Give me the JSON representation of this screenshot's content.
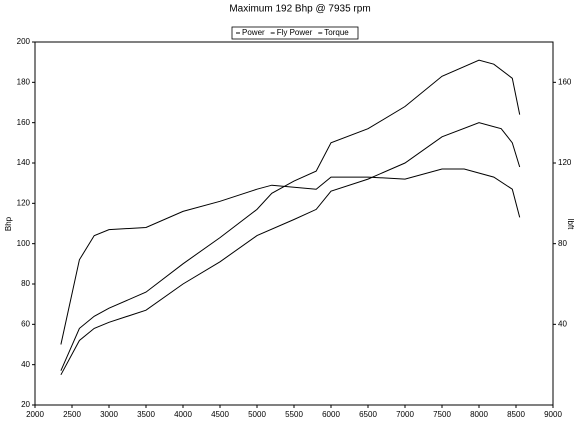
{
  "chart_data": {
    "type": "line",
    "title": "Maximum 192 Bhp @ 7935 rpm",
    "ylabel": "Bhp",
    "y2label": "lbft",
    "xlim": [
      2000,
      9000
    ],
    "xticks": [
      2000,
      2500,
      3000,
      3500,
      4000,
      4500,
      5000,
      5500,
      6000,
      6500,
      7000,
      7500,
      8000,
      8500,
      9000
    ],
    "ylim": [
      20,
      200
    ],
    "yticks": [
      20,
      40,
      60,
      80,
      100,
      120,
      140,
      160,
      180,
      200
    ],
    "y2lim": [
      0,
      180
    ],
    "y2ticks": [
      40,
      80,
      120,
      160
    ],
    "grid": false,
    "series": [
      {
        "name": "Power",
        "color": "#000000",
        "x": [
          2350,
          2600,
          2800,
          3000,
          3500,
          4000,
          4500,
          5000,
          5500,
          5800,
          6000,
          6500,
          7000,
          7500,
          8000,
          8300,
          8450,
          8550
        ],
        "values": [
          35,
          52,
          58,
          61,
          67,
          80,
          91,
          104,
          112,
          117,
          126,
          132,
          140,
          153,
          160,
          157,
          150,
          138
        ]
      },
      {
        "name": "Fly Power",
        "color": "#000000",
        "x": [
          2350,
          2600,
          2800,
          3000,
          3500,
          4000,
          4500,
          5000,
          5200,
          5500,
          5800,
          6000,
          6500,
          7000,
          7500,
          8000,
          8200,
          8450,
          8550
        ],
        "values": [
          37,
          58,
          64,
          68,
          76,
          90,
          103,
          117,
          125,
          131,
          136,
          150,
          157,
          168,
          183,
          191,
          189,
          182,
          164
        ]
      },
      {
        "name": "Torque",
        "color": "#000000",
        "axis": "y2",
        "x": [
          2350,
          2600,
          2800,
          3000,
          3500,
          4000,
          4500,
          5000,
          5200,
          5800,
          6000,
          6500,
          7000,
          7500,
          7800,
          8200,
          8450,
          8550
        ],
        "values": [
          30,
          72,
          84,
          87,
          88,
          96,
          101,
          107,
          109,
          107,
          113,
          113,
          112,
          117,
          117,
          113,
          107,
          93
        ]
      }
    ]
  }
}
